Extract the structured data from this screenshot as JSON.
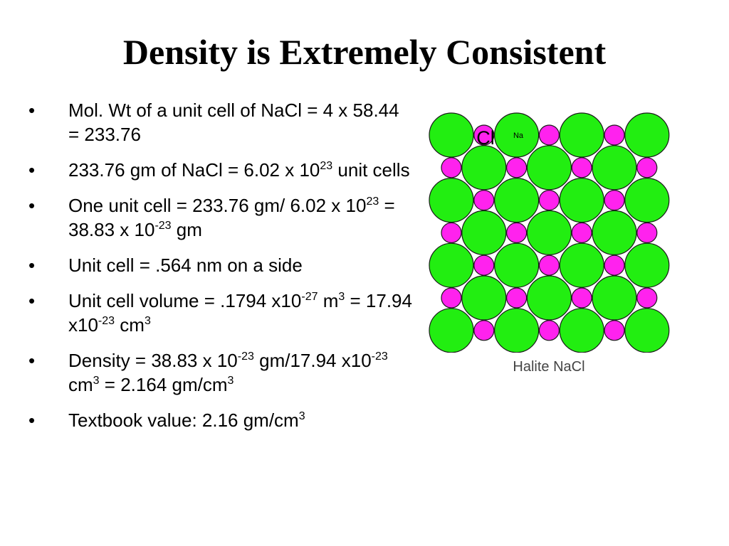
{
  "slide": {
    "title": "Density is Extremely Consistent"
  },
  "bullet_char": "•",
  "bullets": [
    {
      "parts": [
        "Mol. Wt of a unit cell of NaCl = 4 x 58.44 = 233.76"
      ]
    },
    {
      "parts": [
        "233.76 gm of NaCl = 6.02 x 10",
        "23",
        " unit cells"
      ]
    },
    {
      "parts": [
        "One unit cell = 233.76 gm/ 6.02 x 10",
        "23",
        " = 38.83 x 10",
        "-23",
        " gm"
      ]
    },
    {
      "parts": [
        "Unit cell = .564 nm on a side"
      ]
    },
    {
      "parts": [
        "Unit cell volume = .1794 x10",
        "-27",
        " m",
        "3",
        " = 17.94 x10",
        "-23",
        " cm",
        "3"
      ]
    },
    {
      "parts": [
        "Density = 38.83 x 10",
        "-23",
        " gm/17.94 x10",
        "-23",
        " cm",
        "3",
        " = 2.164 gm/cm",
        "3"
      ]
    },
    {
      "parts": [
        "Textbook value: 2.16 gm/cm",
        "3"
      ]
    }
  ],
  "figure": {
    "cl_label": "Cl",
    "na_label": "Na",
    "caption": "Halite  NaCl",
    "cl_color": "#22ee11",
    "na_color": "#ff22ee",
    "outline_color": "#1a1a1a"
  }
}
